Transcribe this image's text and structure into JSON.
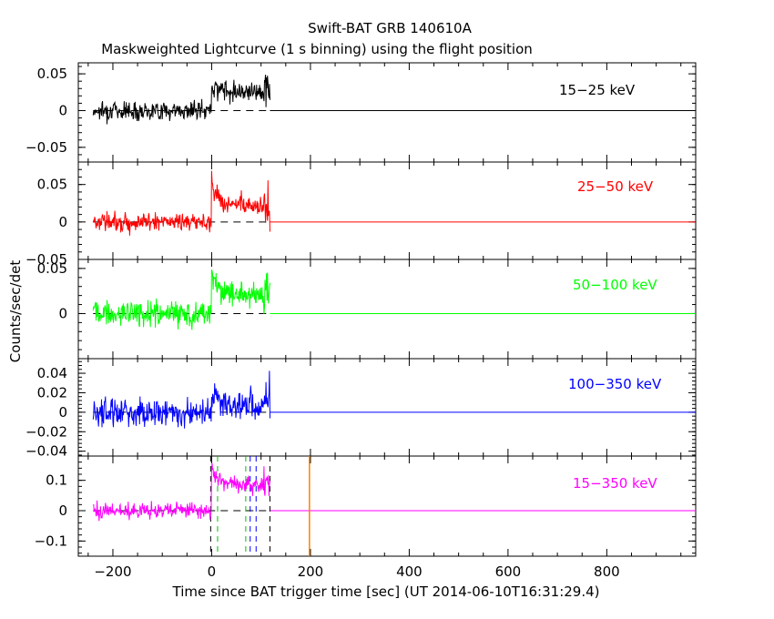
{
  "title": "Swift-BAT GRB 140610A",
  "subtitle": "Maskweighted Lightcurve (1 s binning) using the flight position",
  "xlabel": "Time since BAT trigger time [sec] (UT 2014-06-10T16:31:29.4)",
  "ylabel": "Counts/sec/det",
  "colors": {
    "band1": "#000000",
    "band2": "#ff0000",
    "band3": "#00ff00",
    "band4": "#0000ff",
    "band5": "#ff00ff",
    "orange_marker": "#ff8000",
    "green_marker": "#00c000"
  },
  "chart_data": {
    "type": "line",
    "xlim": [
      -270,
      980
    ],
    "x_ticks": [
      -200,
      0,
      200,
      400,
      600,
      800
    ],
    "x_tick_labels": [
      "−200",
      "0",
      "200",
      "400",
      "600",
      "800"
    ],
    "data_range": [
      -240,
      118
    ],
    "series": [
      {
        "name": "15−25 keV",
        "ylim": [
          -0.07,
          0.065
        ],
        "ticks": [
          -0.05,
          0,
          0.05
        ],
        "tick_labels": [
          "−0.05",
          "0",
          "0.05"
        ],
        "noise": 0.009,
        "pre_level": 0.0,
        "peak": 0.035,
        "plateau": 0.027,
        "color_key": "band1"
      },
      {
        "name": "25−50 keV",
        "ylim": [
          -0.05,
          0.08
        ],
        "ticks": [
          -0.05,
          0,
          0.05
        ],
        "tick_labels": [
          "−0.05",
          "0",
          "0.05"
        ],
        "noise": 0.009,
        "pre_level": 0.0,
        "peak": 0.055,
        "plateau": 0.022,
        "color_key": "band2"
      },
      {
        "name": "50−100 keV",
        "ylim": [
          -0.05,
          0.06
        ],
        "ticks": [
          0,
          0.05
        ],
        "tick_labels": [
          "0",
          "0.05"
        ],
        "noise": 0.01,
        "pre_level": 0.0,
        "peak": 0.045,
        "plateau": 0.022,
        "color_key": "band3"
      },
      {
        "name": "100−350 keV",
        "ylim": [
          -0.045,
          0.055
        ],
        "ticks": [
          -0.04,
          -0.02,
          0,
          0.02,
          0.04
        ],
        "tick_labels": [
          "−0.04",
          "−0.02",
          "0",
          "0.02",
          "0.04"
        ],
        "noise": 0.01,
        "pre_level": 0.0,
        "peak": 0.02,
        "plateau": 0.007,
        "color_key": "band4"
      },
      {
        "name": "15−350 keV",
        "ylim": [
          -0.15,
          0.18
        ],
        "ticks": [
          -0.1,
          0,
          0.1
        ],
        "tick_labels": [
          "−0.1",
          "0",
          "0.1"
        ],
        "noise": 0.018,
        "pre_level": 0.0,
        "peak": 0.14,
        "plateau": 0.085,
        "color_key": "band5"
      }
    ],
    "markers": {
      "black_dashed": [
        -2,
        118
      ],
      "green_dashed": [
        12,
        69
      ],
      "blue_dashed": [
        78,
        90
      ],
      "orange_solid": 198
    }
  }
}
